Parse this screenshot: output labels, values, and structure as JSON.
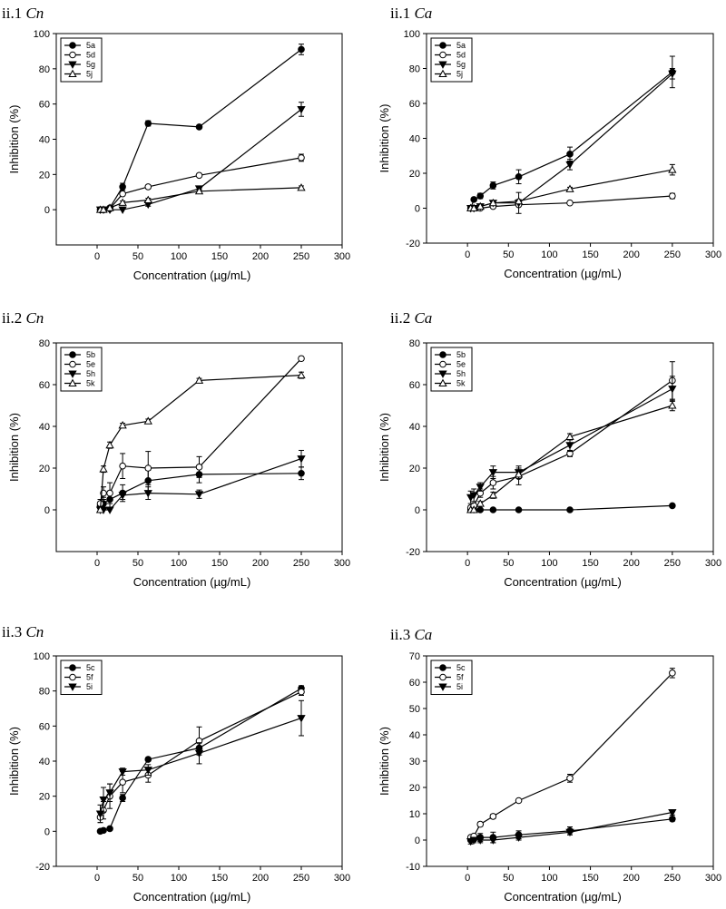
{
  "chart_data": [
    {
      "type": "line",
      "title_prefix": "ii.1",
      "title_italic": "Cn",
      "xlabel": "Concentration (µg/mL)",
      "ylabel": "Inhibition (%)",
      "xlim": [
        -50,
        300
      ],
      "ylim": [
        -20,
        100
      ],
      "xticks": [
        0,
        50,
        100,
        150,
        200,
        250,
        300
      ],
      "yticks": [
        0,
        20,
        40,
        60,
        80,
        100
      ],
      "series": [
        {
          "name": "5a",
          "marker": "circle-filled",
          "x": [
            3.9,
            7.8,
            15.6,
            31.25,
            62.5,
            125,
            250
          ],
          "y": [
            0,
            0,
            1,
            13,
            49,
            47,
            91
          ],
          "err": [
            0,
            0,
            1,
            2,
            1.5,
            1,
            3
          ]
        },
        {
          "name": "5d",
          "marker": "circle-open",
          "x": [
            3.9,
            7.8,
            15.6,
            31.25,
            62.5,
            125,
            250
          ],
          "y": [
            0,
            0,
            0.5,
            9,
            13,
            19.5,
            29.5
          ],
          "err": [
            0,
            0,
            0.5,
            1,
            1,
            1,
            2
          ]
        },
        {
          "name": "5g",
          "marker": "triangle-down-filled",
          "x": [
            3.9,
            7.8,
            15.6,
            31.25,
            62.5,
            125,
            250
          ],
          "y": [
            0,
            0,
            0,
            0,
            3,
            12,
            57
          ],
          "err": [
            0,
            0,
            0,
            0,
            1,
            1,
            4
          ]
        },
        {
          "name": "5j",
          "marker": "triangle-up-open",
          "x": [
            3.9,
            7.8,
            15.6,
            31.25,
            62.5,
            125,
            250
          ],
          "y": [
            0,
            0,
            1,
            4,
            5.5,
            10.5,
            12.5
          ],
          "err": [
            0,
            0,
            0.5,
            1,
            1,
            1,
            1
          ]
        }
      ]
    },
    {
      "type": "line",
      "title_prefix": "ii.1",
      "title_italic": "Ca",
      "xlabel": "Concentration (µg/mL)",
      "ylabel": "Inhibition (%)",
      "xlim": [
        -50,
        300
      ],
      "ylim": [
        -20,
        100
      ],
      "xticks": [
        0,
        50,
        100,
        150,
        200,
        250,
        300
      ],
      "yticks": [
        -20,
        0,
        20,
        40,
        60,
        80,
        100
      ],
      "series": [
        {
          "name": "5a",
          "marker": "circle-filled",
          "x": [
            3.9,
            7.8,
            15.6,
            31.25,
            62.5,
            125,
            250
          ],
          "y": [
            0,
            5,
            7,
            13,
            18,
            31,
            78
          ],
          "err": [
            0,
            1,
            1.5,
            2,
            4,
            4,
            9
          ]
        },
        {
          "name": "5d",
          "marker": "circle-open",
          "x": [
            3.9,
            7.8,
            15.6,
            31.25,
            62.5,
            125,
            250
          ],
          "y": [
            0,
            0,
            0,
            1,
            2,
            3,
            7
          ],
          "err": [
            0,
            0,
            0,
            0.5,
            0.5,
            0.5,
            1.5
          ]
        },
        {
          "name": "5g",
          "marker": "triangle-down-filled",
          "x": [
            3.9,
            7.8,
            15.6,
            31.25,
            62.5,
            125,
            250
          ],
          "y": [
            0,
            0,
            1,
            3,
            3,
            25,
            77
          ],
          "err": [
            0,
            0,
            0.5,
            1,
            6,
            3,
            3
          ]
        },
        {
          "name": "5j",
          "marker": "triangle-up-open",
          "x": [
            3.9,
            7.8,
            15.6,
            31.25,
            62.5,
            125,
            250
          ],
          "y": [
            0,
            0,
            1,
            3,
            4,
            11,
            22
          ],
          "err": [
            0,
            0,
            0.5,
            1,
            1,
            1,
            3
          ]
        }
      ]
    },
    {
      "type": "line",
      "title_prefix": "ii.2",
      "title_italic": "Cn",
      "xlabel": "Concentration (µg/mL)",
      "ylabel": "Inhibition (%)",
      "xlim": [
        -50,
        300
      ],
      "ylim": [
        -20,
        80
      ],
      "xticks": [
        0,
        50,
        100,
        150,
        200,
        250,
        300
      ],
      "yticks": [
        0,
        20,
        40,
        60,
        80
      ],
      "series": [
        {
          "name": "5b",
          "marker": "circle-filled",
          "x": [
            3.9,
            7.8,
            15.6,
            31.25,
            62.5,
            125,
            250
          ],
          "y": [
            2,
            3,
            5,
            8,
            14,
            17,
            17.5
          ],
          "err": [
            3,
            3,
            4,
            4,
            5,
            4,
            3
          ]
        },
        {
          "name": "5e",
          "marker": "circle-open",
          "x": [
            3.9,
            7.8,
            15.6,
            31.25,
            62.5,
            125,
            250
          ],
          "y": [
            3,
            8,
            8,
            21,
            20,
            20.5,
            72.5
          ],
          "err": [
            2,
            3,
            5,
            6,
            8,
            5,
            1
          ]
        },
        {
          "name": "5h",
          "marker": "triangle-down-filled",
          "x": [
            3.9,
            7.8,
            15.6,
            31.25,
            62.5,
            125,
            250
          ],
          "y": [
            0,
            0,
            0,
            7,
            8,
            7.5,
            24.5
          ],
          "err": [
            0,
            0,
            0,
            2,
            3,
            2,
            4
          ]
        },
        {
          "name": "5k",
          "marker": "triangle-up-open",
          "x": [
            3.9,
            7.8,
            15.6,
            31.25,
            62.5,
            125,
            250
          ],
          "y": [
            0,
            19.5,
            31,
            40.5,
            42.5,
            62,
            64.5
          ],
          "err": [
            0,
            1.5,
            1.5,
            1,
            1,
            1,
            1.5
          ]
        }
      ]
    },
    {
      "type": "line",
      "title_prefix": "ii.2",
      "title_italic": "Ca",
      "xlabel": "Concentration (µg/mL)",
      "ylabel": "Inhibition (%)",
      "xlim": [
        -50,
        300
      ],
      "ylim": [
        -20,
        80
      ],
      "xticks": [
        0,
        50,
        100,
        150,
        200,
        250,
        300
      ],
      "yticks": [
        -20,
        0,
        20,
        40,
        60,
        80
      ],
      "series": [
        {
          "name": "5b",
          "marker": "circle-filled",
          "x": [
            3.9,
            7.8,
            15.6,
            31.25,
            62.5,
            125,
            250
          ],
          "y": [
            0,
            0,
            0,
            0,
            0,
            0,
            2
          ],
          "err": [
            0,
            0,
            0,
            0,
            0,
            0,
            0.5
          ]
        },
        {
          "name": "5e",
          "marker": "circle-open",
          "x": [
            3.9,
            7.8,
            15.6,
            31.25,
            62.5,
            125,
            250
          ],
          "y": [
            1,
            2,
            8,
            13,
            16,
            27,
            62
          ],
          "err": [
            1,
            1,
            2,
            3,
            4,
            1.5,
            9
          ]
        },
        {
          "name": "5h",
          "marker": "triangle-down-filled",
          "x": [
            3.9,
            7.8,
            15.6,
            31.25,
            62.5,
            125,
            250
          ],
          "y": [
            6,
            7,
            11,
            18,
            18,
            31,
            58
          ],
          "err": [
            3,
            3,
            2,
            3,
            3,
            3,
            6
          ]
        },
        {
          "name": "5k",
          "marker": "triangle-up-open",
          "x": [
            3.9,
            7.8,
            15.6,
            31.25,
            62.5,
            125,
            250
          ],
          "y": [
            0,
            0,
            3,
            7,
            17,
            35,
            50
          ],
          "err": [
            0,
            0,
            1,
            1.5,
            2,
            1.5,
            2.5
          ]
        }
      ]
    },
    {
      "type": "line",
      "title_prefix": "ii.3",
      "title_italic": "Cn",
      "xlabel": "Concentration (µg/mL)",
      "ylabel": "Inhibition (%)",
      "xlim": [
        -50,
        300
      ],
      "ylim": [
        -20,
        100
      ],
      "xticks": [
        0,
        50,
        100,
        150,
        200,
        250,
        300
      ],
      "yticks": [
        -20,
        0,
        20,
        40,
        60,
        80,
        100
      ],
      "series": [
        {
          "name": "5c",
          "marker": "circle-filled",
          "x": [
            3.9,
            7.8,
            15.6,
            31.25,
            62.5,
            125,
            250
          ],
          "y": [
            0,
            0.5,
            1.5,
            19,
            41,
            47.5,
            81.5
          ],
          "err": [
            0,
            0.5,
            1,
            2,
            1,
            3,
            1.5
          ]
        },
        {
          "name": "5f",
          "marker": "circle-open",
          "x": [
            3.9,
            7.8,
            15.6,
            31.25,
            62.5,
            125,
            250
          ],
          "y": [
            8,
            12,
            20,
            28,
            32,
            51.5,
            79.5
          ],
          "err": [
            3,
            5,
            7,
            6,
            4,
            8,
            2
          ]
        },
        {
          "name": "5i",
          "marker": "triangle-down-filled",
          "x": [
            3.9,
            7.8,
            15.6,
            31.25,
            62.5,
            125,
            250
          ],
          "y": [
            10,
            18,
            22,
            34,
            35,
            44.5,
            64.5
          ],
          "err": [
            5,
            7,
            5,
            2,
            3,
            6,
            10
          ]
        }
      ]
    },
    {
      "type": "line",
      "title_prefix": "ii.3",
      "title_italic": "Ca",
      "xlabel": "Concentration (µg/mL)",
      "ylabel": "Inhibition (%)",
      "xlim": [
        -50,
        300
      ],
      "ylim": [
        -10,
        70
      ],
      "xticks": [
        0,
        50,
        100,
        150,
        200,
        250,
        300
      ],
      "yticks": [
        -10,
        0,
        10,
        20,
        30,
        40,
        50,
        60,
        70
      ],
      "series": [
        {
          "name": "5c",
          "marker": "circle-filled",
          "x": [
            3.9,
            7.8,
            15.6,
            31.25,
            62.5,
            125,
            250
          ],
          "y": [
            0,
            0.5,
            1,
            1,
            2,
            3.5,
            8
          ],
          "err": [
            0,
            1,
            1.5,
            2,
            1.5,
            1.5,
            0.8
          ]
        },
        {
          "name": "5f",
          "marker": "circle-open",
          "x": [
            3.9,
            7.8,
            15.6,
            31.25,
            62.5,
            125,
            250
          ],
          "y": [
            1,
            1.5,
            6,
            9,
            15,
            23.5,
            63.5
          ],
          "err": [
            0.5,
            0.5,
            0.8,
            0.8,
            0.5,
            1.5,
            1.8
          ]
        },
        {
          "name": "5i",
          "marker": "triangle-down-filled",
          "x": [
            3.9,
            7.8,
            15.6,
            31.25,
            62.5,
            125,
            250
          ],
          "y": [
            -0.5,
            0,
            0,
            0,
            1,
            3,
            10.5
          ],
          "err": [
            1,
            1,
            1,
            1,
            1,
            1,
            1
          ]
        }
      ]
    }
  ]
}
